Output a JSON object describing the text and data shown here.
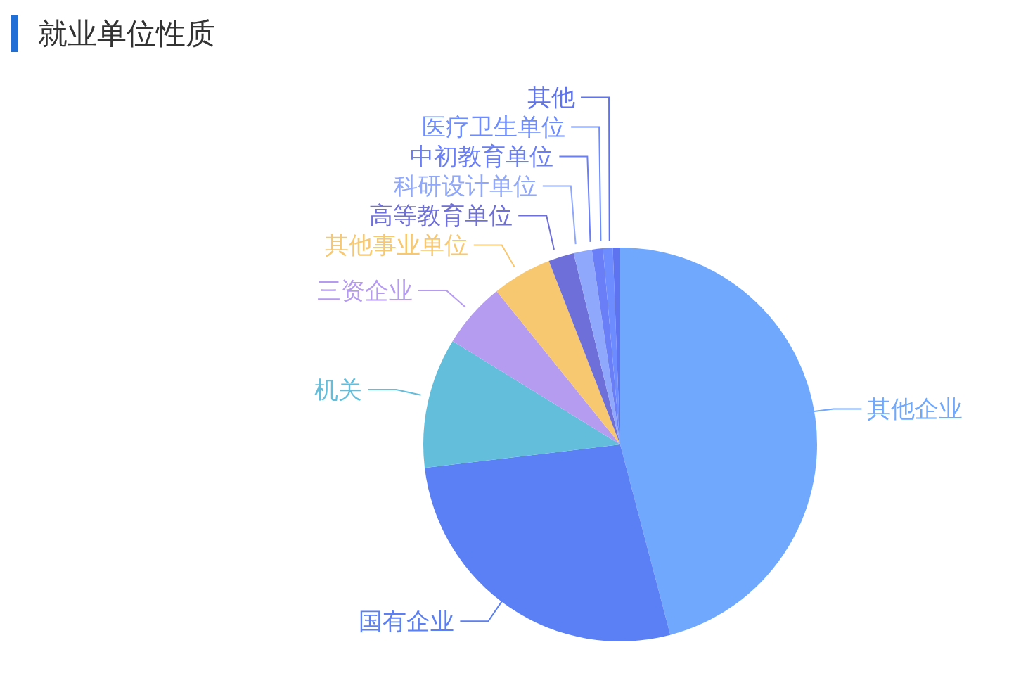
{
  "chart_data": {
    "type": "pie",
    "title": "就业单位性质",
    "categories": [
      "其他企业",
      "国有企业",
      "机关",
      "三资企业",
      "其他事业单位",
      "高等教育单位",
      "科研设计单位",
      "中初教育单位",
      "医疗卫生单位",
      "其他"
    ],
    "values": [
      45.9,
      27.2,
      10.7,
      5.4,
      4.9,
      2.1,
      1.5,
      0.9,
      0.8,
      0.6
    ],
    "colors": [
      "#6fa8fd",
      "#5b7ff5",
      "#63bedc",
      "#b69cf0",
      "#f8c870",
      "#6e6fd8",
      "#8fa8fb",
      "#6a7ff7",
      "#6c8cff",
      "#5e73f0"
    ],
    "legend": false
  }
}
